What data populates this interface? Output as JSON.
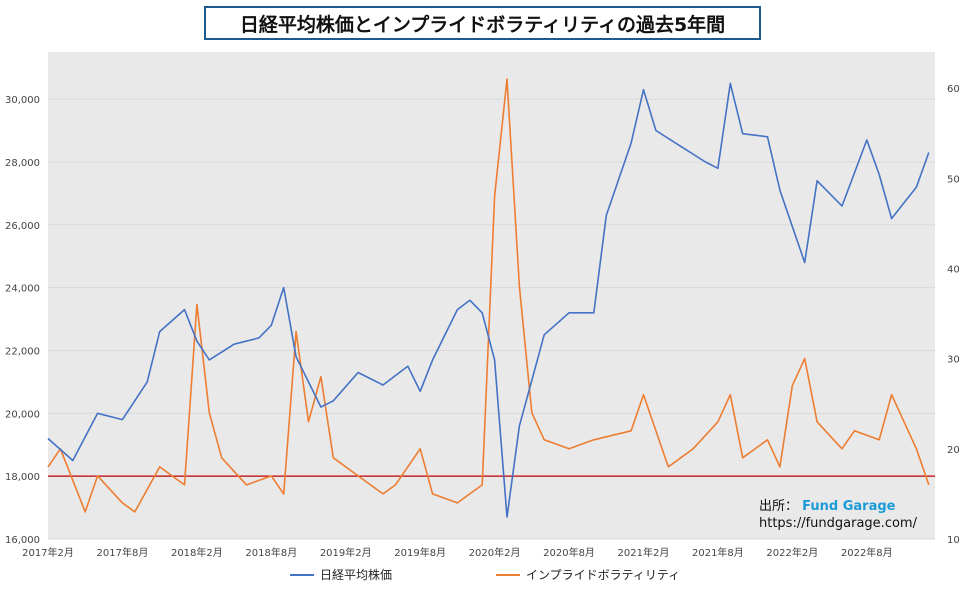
{
  "title": "日経平均株価とインプライドボラティリティの過去5年間",
  "source_label": "出所：",
  "source_name": "Fund Garage",
  "source_url": "https://fundgarage.com/",
  "colors": {
    "nikkei": "#4472c4",
    "vi": "#ed7d31",
    "reference": "#c00000",
    "plot_bg": "#e9e9e9",
    "grid": "#d9d9d9"
  },
  "chart_data": {
    "type": "line",
    "title": "日経平均株価とインプライドボラティリティの過去5年間",
    "x_ticks": [
      "2017年2月",
      "2017年8月",
      "2018年2月",
      "2018年8月",
      "2019年2月",
      "2019年8月",
      "2020年2月",
      "2020年8月",
      "2021年2月",
      "2021年8月",
      "2022年2月",
      "2022年8月"
    ],
    "y_left": {
      "min": 16000,
      "max": 31500,
      "ticks": [
        "16,000",
        "18,000",
        "20,000",
        "22,000",
        "24,000",
        "26,000",
        "28,000",
        "30,000"
      ]
    },
    "y_right": {
      "min": 10,
      "max": 64,
      "ticks": [
        "10",
        "20",
        "30",
        "40",
        "50",
        "60"
      ]
    },
    "reference_line": {
      "axis": "left",
      "value": 18000
    },
    "grid": "horizontal",
    "legend_position": "bottom",
    "series": [
      {
        "name": "日経平均株価",
        "axis": "left",
        "x": [
          "2017-02",
          "2017-04",
          "2017-06",
          "2017-08",
          "2017-10",
          "2017-11",
          "2018-01",
          "2018-02",
          "2018-03",
          "2018-05",
          "2018-07",
          "2018-08",
          "2018-09",
          "2018-10",
          "2018-12",
          "2019-01",
          "2019-03",
          "2019-05",
          "2019-07",
          "2019-08",
          "2019-09",
          "2019-11",
          "2019-12",
          "2020-01",
          "2020-02",
          "2020-03",
          "2020-04",
          "2020-06",
          "2020-08",
          "2020-10",
          "2020-11",
          "2021-01",
          "2021-02",
          "2021-03",
          "2021-05",
          "2021-07",
          "2021-08",
          "2021-09",
          "2021-10",
          "2021-12",
          "2022-01",
          "2022-03",
          "2022-04",
          "2022-06",
          "2022-08",
          "2022-09",
          "2022-10",
          "2022-12",
          "2023-01"
        ],
        "values": [
          19200,
          18500,
          20000,
          19800,
          21000,
          22600,
          23300,
          22300,
          21700,
          22200,
          22400,
          22800,
          24000,
          21800,
          20200,
          20400,
          21300,
          20900,
          21500,
          20700,
          21700,
          23300,
          23600,
          23200,
          21700,
          16700,
          19600,
          22500,
          23200,
          23200,
          26300,
          28600,
          30300,
          29000,
          28500,
          28000,
          27800,
          30500,
          28900,
          28800,
          27100,
          24800,
          27400,
          26600,
          28700,
          27600,
          26200,
          27200,
          28300
        ]
      },
      {
        "name": "インプライドボラティリティ",
        "axis": "right",
        "x": [
          "2017-02",
          "2017-03",
          "2017-05",
          "2017-06",
          "2017-08",
          "2017-09",
          "2017-11",
          "2018-01",
          "2018-02",
          "2018-03",
          "2018-04",
          "2018-06",
          "2018-08",
          "2018-09",
          "2018-10",
          "2018-11",
          "2018-12",
          "2019-01",
          "2019-03",
          "2019-05",
          "2019-06",
          "2019-08",
          "2019-09",
          "2019-11",
          "2020-01",
          "2020-02",
          "2020-03",
          "2020-04",
          "2020-05",
          "2020-06",
          "2020-08",
          "2020-10",
          "2021-01",
          "2021-02",
          "2021-03",
          "2021-04",
          "2021-06",
          "2021-08",
          "2021-09",
          "2021-10",
          "2021-12",
          "2022-01",
          "2022-02",
          "2022-03",
          "2022-04",
          "2022-06",
          "2022-07",
          "2022-09",
          "2022-10",
          "2022-12",
          "2023-01"
        ],
        "values": [
          18,
          20,
          13,
          17,
          14,
          13,
          18,
          16,
          36,
          24,
          19,
          16,
          17,
          15,
          33,
          23,
          28,
          19,
          17,
          15,
          16,
          20,
          15,
          14,
          16,
          48,
          61,
          38,
          24,
          21,
          20,
          21,
          22,
          26,
          22,
          18,
          20,
          23,
          26,
          19,
          21,
          18,
          27,
          30,
          23,
          20,
          22,
          21,
          26,
          20,
          16
        ]
      }
    ]
  }
}
